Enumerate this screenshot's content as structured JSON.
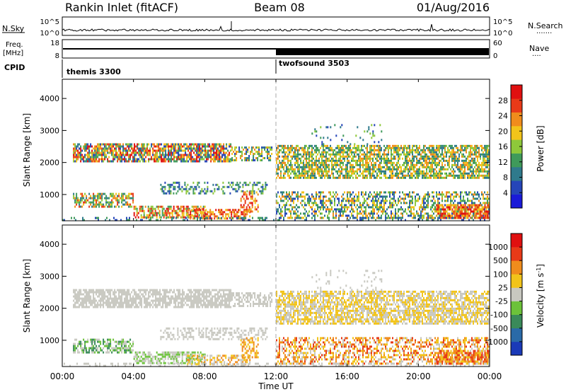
{
  "header": {
    "station": "Rankin Inlet (fitACF)",
    "beam": "Beam 08",
    "date": "01/Aug/2016"
  },
  "nsky_panel": {
    "left_label": "N.Sky",
    "right_label": "N.Search",
    "left_ticks": [
      "10^5",
      "10^0"
    ],
    "right_ticks": [
      "10^5",
      "10^0"
    ]
  },
  "freq_panel": {
    "left_label_1": "Freq.",
    "left_label_2": "[MHz]",
    "right_label": "Nave",
    "left_ticks": [
      18,
      8
    ],
    "right_ticks": [
      60,
      0
    ]
  },
  "cpid": {
    "label": "CPID",
    "segments": [
      {
        "name": "themis 3300",
        "start_h": 0
      },
      {
        "name": "twofsound 3503",
        "start_h": 12
      }
    ]
  },
  "chart_data": [
    {
      "type": "heatmap",
      "quantity": "Power",
      "ylabel": "Slant Range [km]",
      "xlabel": "Time UT",
      "xlim": [
        0,
        24
      ],
      "ylim": [
        180,
        4600
      ],
      "yticks": [
        1000,
        2000,
        3000,
        4000
      ],
      "colorbar": {
        "label": "Power [dB]",
        "ticks": [
          4,
          8,
          12,
          16,
          20,
          24,
          28
        ],
        "range": [
          0,
          32
        ],
        "colors": [
          "#1a1ad8",
          "#2545b8",
          "#2f7a8c",
          "#3f9a5a",
          "#8ec83a",
          "#f2c41a",
          "#f08c1c",
          "#e83a18",
          "#e01010"
        ]
      }
    },
    {
      "type": "heatmap",
      "quantity": "Velocity",
      "ylabel": "Slant Range [km]",
      "xlabel": "Time UT",
      "xlim": [
        0,
        24
      ],
      "ylim": [
        180,
        4600
      ],
      "yticks": [
        1000,
        2000,
        3000,
        4000
      ],
      "colorbar": {
        "label": "Velocity [m s",
        "label_sup": "-1",
        "label_end": "]",
        "ticks": [
          "1000",
          "500",
          "100",
          "25",
          "-25",
          "-100",
          "-500",
          "-1000"
        ],
        "colors": [
          "#1a3ab8",
          "#2a6aa8",
          "#3a8a5a",
          "#6cc23a",
          "#c8c8c0",
          "#f2c41a",
          "#f08c1c",
          "#e83a18",
          "#e01010"
        ]
      }
    }
  ],
  "time_axis": {
    "ticks": [
      "00:00",
      "04:00",
      "08:00",
      "12:00",
      "16:00",
      "20:00",
      "00:00"
    ],
    "label": "Time UT"
  }
}
